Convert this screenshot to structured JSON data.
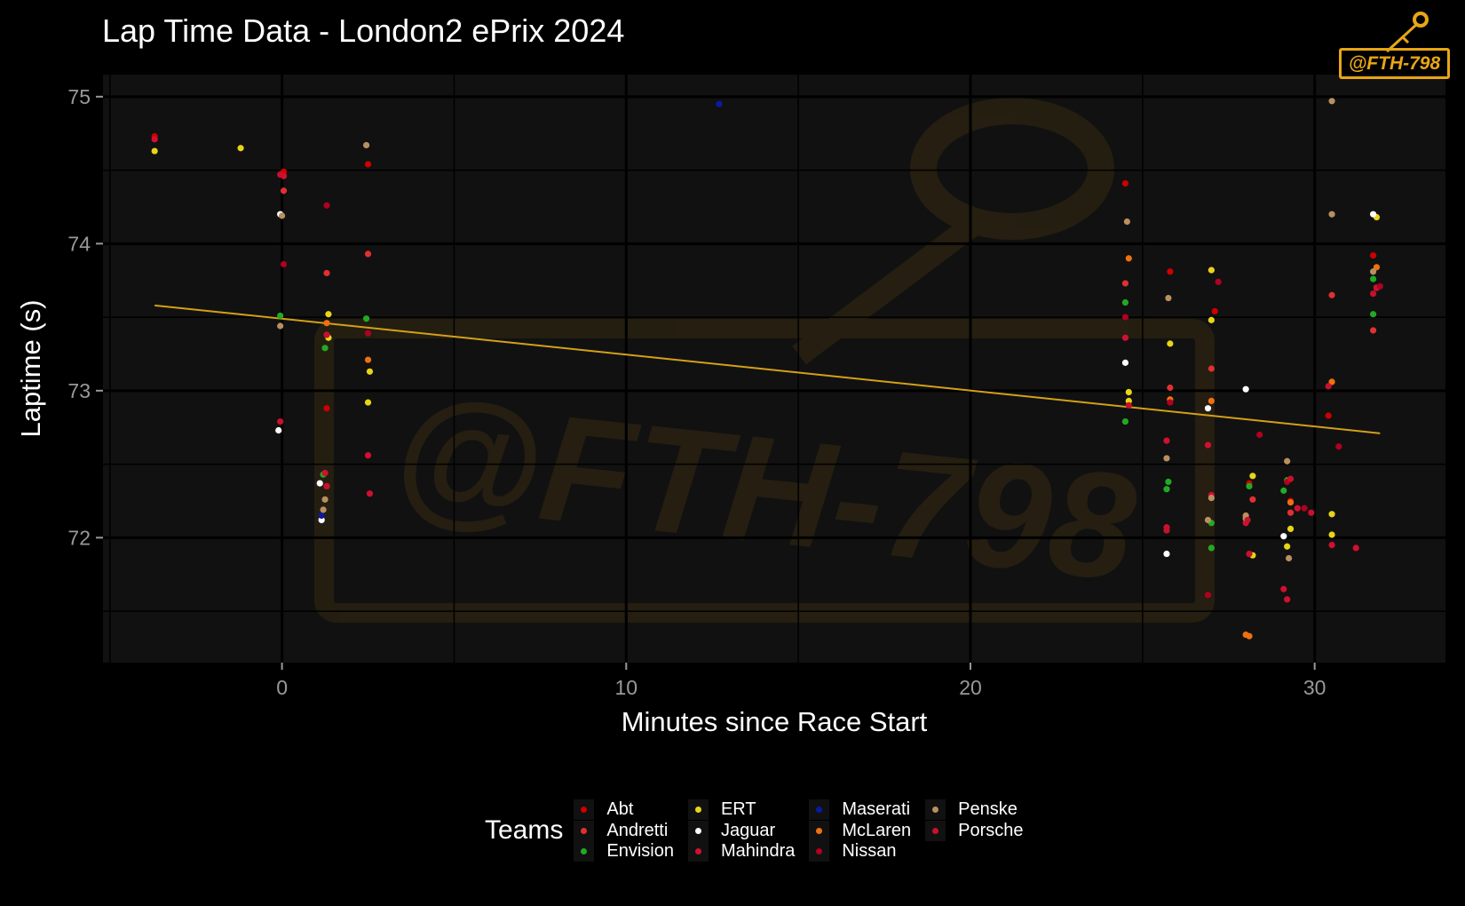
{
  "chart_data": {
    "type": "scatter",
    "title": "Lap Time Data - London2 ePrix 2024",
    "xlabel": "Minutes since Race Start",
    "ylabel": "Laptime (s)",
    "xlim": [
      -5.2,
      33.8
    ],
    "ylim": [
      71.15,
      75.15
    ],
    "x_ticks": [
      0,
      10,
      20,
      30
    ],
    "y_ticks": [
      72,
      73,
      74,
      75
    ],
    "grid": true,
    "legend_title": "Teams",
    "legend_position": "bottom",
    "trend_line": {
      "x": [
        -3.7,
        31.9
      ],
      "y": [
        73.58,
        72.71
      ],
      "color": "#D4A017"
    },
    "watermark": "@FTH-798",
    "series": [
      {
        "name": "Abt",
        "color": "#CC0000",
        "points": [
          [
            -3.7,
            74.73
          ],
          [
            0.05,
            74.49
          ],
          [
            1.3,
            72.88
          ],
          [
            2.5,
            74.54
          ],
          [
            24.5,
            74.41
          ],
          [
            25.8,
            73.81
          ],
          [
            27.1,
            73.54
          ],
          [
            28.1,
            72.37
          ],
          [
            29.3,
            72.25
          ],
          [
            30.4,
            72.83
          ],
          [
            31.7,
            73.92
          ]
        ]
      },
      {
        "name": "Andretti",
        "color": "#E03030",
        "points": [
          [
            0.05,
            74.36
          ],
          [
            1.3,
            73.8
          ],
          [
            2.5,
            73.93
          ],
          [
            24.5,
            73.73
          ],
          [
            25.8,
            73.02
          ],
          [
            27.0,
            73.15
          ],
          [
            28.2,
            72.26
          ],
          [
            29.3,
            72.17
          ],
          [
            30.5,
            73.65
          ],
          [
            31.7,
            73.41
          ]
        ]
      },
      {
        "name": "Envision",
        "color": "#22AA22",
        "points": [
          [
            -0.05,
            73.51
          ],
          [
            1.25,
            73.29
          ],
          [
            1.2,
            72.43
          ],
          [
            2.45,
            73.49
          ],
          [
            24.5,
            73.6
          ],
          [
            24.5,
            72.79
          ],
          [
            25.7,
            72.33
          ],
          [
            25.75,
            72.38
          ],
          [
            27.0,
            72.1
          ],
          [
            27.0,
            71.93
          ],
          [
            28.1,
            72.35
          ],
          [
            29.1,
            72.32
          ],
          [
            29.2,
            72.39
          ],
          [
            31.7,
            73.76
          ],
          [
            31.7,
            73.52
          ]
        ]
      },
      {
        "name": "ERT",
        "color": "#E8D418",
        "points": [
          [
            -3.7,
            74.63
          ],
          [
            -1.2,
            74.65
          ],
          [
            1.35,
            73.52
          ],
          [
            1.35,
            73.36
          ],
          [
            2.5,
            72.92
          ],
          [
            2.55,
            73.13
          ],
          [
            24.6,
            72.99
          ],
          [
            24.6,
            72.93
          ],
          [
            25.8,
            73.32
          ],
          [
            27.0,
            73.82
          ],
          [
            27.0,
            73.48
          ],
          [
            28.2,
            72.42
          ],
          [
            28.2,
            71.88
          ],
          [
            29.2,
            71.94
          ],
          [
            29.3,
            72.06
          ],
          [
            30.5,
            72.16
          ],
          [
            30.5,
            72.02
          ],
          [
            31.8,
            74.18
          ],
          [
            31.8,
            73.7
          ]
        ]
      },
      {
        "name": "Jaguar",
        "color": "#FFFFFF",
        "points": [
          [
            -0.05,
            74.2
          ],
          [
            -0.1,
            72.73
          ],
          [
            1.1,
            72.37
          ],
          [
            1.15,
            72.12
          ],
          [
            24.5,
            73.19
          ],
          [
            25.7,
            71.89
          ],
          [
            26.9,
            72.88
          ],
          [
            28.0,
            73.01
          ],
          [
            29.1,
            72.01
          ],
          [
            31.7,
            74.2
          ]
        ]
      },
      {
        "name": "Mahindra",
        "color": "#D01030",
        "points": [
          [
            -3.7,
            74.71
          ],
          [
            0.05,
            74.46
          ],
          [
            1.3,
            72.35
          ],
          [
            1.25,
            72.44
          ],
          [
            2.5,
            72.56
          ],
          [
            2.55,
            72.3
          ],
          [
            24.5,
            73.36
          ],
          [
            25.7,
            72.66
          ],
          [
            25.7,
            72.07
          ],
          [
            26.9,
            72.63
          ],
          [
            27.0,
            72.29
          ],
          [
            28.0,
            72.1
          ],
          [
            29.1,
            71.65
          ],
          [
            29.2,
            71.58
          ],
          [
            29.5,
            72.2
          ],
          [
            30.5,
            71.95
          ],
          [
            31.2,
            71.93
          ],
          [
            31.8,
            73.7
          ]
        ]
      },
      {
        "name": "Maserati",
        "color": "#0A1AA0",
        "points": [
          [
            12.7,
            74.95
          ],
          [
            1.15,
            72.15
          ]
        ]
      },
      {
        "name": "McLaren",
        "color": "#F07010",
        "points": [
          [
            1.3,
            73.46
          ],
          [
            2.5,
            73.21
          ],
          [
            24.6,
            73.9
          ],
          [
            25.8,
            72.94
          ],
          [
            27.0,
            72.93
          ],
          [
            28.0,
            71.34
          ],
          [
            28.1,
            71.33
          ],
          [
            29.3,
            72.24
          ],
          [
            30.5,
            73.06
          ],
          [
            31.8,
            73.84
          ]
        ]
      },
      {
        "name": "Nissan",
        "color": "#B00020",
        "points": [
          [
            0.05,
            73.86
          ],
          [
            1.3,
            74.26
          ],
          [
            2.5,
            73.39
          ],
          [
            24.5,
            73.5
          ],
          [
            25.8,
            72.92
          ],
          [
            26.9,
            71.61
          ],
          [
            27.2,
            73.74
          ],
          [
            28.0,
            72.15
          ],
          [
            28.4,
            72.7
          ],
          [
            29.2,
            72.38
          ],
          [
            29.7,
            72.2
          ],
          [
            30.7,
            72.62
          ],
          [
            31.9,
            73.71
          ]
        ]
      },
      {
        "name": "Penske",
        "color": "#B89060",
        "points": [
          [
            -0.05,
            73.44
          ],
          [
            0.0,
            74.19
          ],
          [
            1.2,
            72.19
          ],
          [
            1.25,
            72.26
          ],
          [
            2.45,
            74.67
          ],
          [
            24.55,
            74.15
          ],
          [
            25.75,
            73.63
          ],
          [
            25.7,
            72.54
          ],
          [
            26.9,
            72.12
          ],
          [
            27.0,
            72.27
          ],
          [
            28.0,
            72.15
          ],
          [
            28.0,
            72.13
          ],
          [
            29.2,
            72.52
          ],
          [
            29.25,
            71.86
          ],
          [
            30.5,
            74.97
          ],
          [
            30.5,
            74.2
          ],
          [
            31.7,
            73.81
          ]
        ]
      },
      {
        "name": "Porsche",
        "color": "#C8102E",
        "points": [
          [
            -0.05,
            74.47
          ],
          [
            -0.05,
            72.79
          ],
          [
            1.3,
            73.38
          ],
          [
            1.3,
            72.35
          ],
          [
            24.6,
            72.9
          ],
          [
            25.7,
            72.05
          ],
          [
            28.05,
            72.12
          ],
          [
            28.1,
            71.89
          ],
          [
            29.3,
            72.4
          ],
          [
            29.9,
            72.17
          ],
          [
            30.4,
            73.03
          ],
          [
            31.7,
            73.66
          ]
        ]
      }
    ]
  }
}
